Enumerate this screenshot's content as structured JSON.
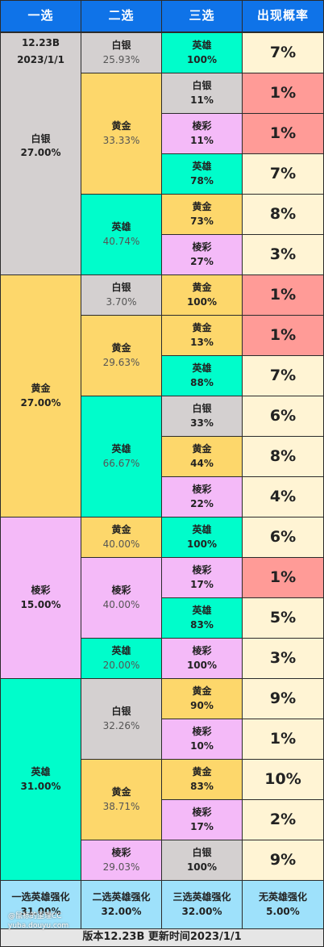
{
  "headers": [
    "一选",
    "二选",
    "三选",
    "出现概率"
  ],
  "version": "12.23B",
  "date": "2023/1/1",
  "groups": [
    {
      "name": "白银",
      "pct": "27.00%",
      "color": "silver",
      "second": [
        {
          "name": "白银",
          "pct": "25.93%",
          "color": "silver",
          "third": [
            {
              "name": "英雄",
              "pct": "100%",
              "color": "hero",
              "prob": "7%",
              "hl": false
            }
          ]
        },
        {
          "name": "黄金",
          "pct": "33.33%",
          "color": "gold",
          "third": [
            {
              "name": "白银",
              "pct": "11%",
              "color": "silver",
              "prob": "1%",
              "hl": true
            },
            {
              "name": "棱彩",
              "pct": "11%",
              "color": "pink",
              "prob": "1%",
              "hl": true
            },
            {
              "name": "英雄",
              "pct": "78%",
              "color": "hero",
              "prob": "7%",
              "hl": false
            }
          ]
        },
        {
          "name": "英雄",
          "pct": "40.74%",
          "color": "hero",
          "third": [
            {
              "name": "黄金",
              "pct": "73%",
              "color": "gold",
              "prob": "8%",
              "hl": false
            },
            {
              "name": "棱彩",
              "pct": "27%",
              "color": "pink",
              "prob": "3%",
              "hl": false
            }
          ]
        }
      ]
    },
    {
      "name": "黄金",
      "pct": "27.00%",
      "color": "gold",
      "second": [
        {
          "name": "白银",
          "pct": "3.70%",
          "color": "silver",
          "third": [
            {
              "name": "黄金",
              "pct": "100%",
              "color": "gold",
              "prob": "1%",
              "hl": true
            }
          ]
        },
        {
          "name": "黄金",
          "pct": "29.63%",
          "color": "gold",
          "third": [
            {
              "name": "黄金",
              "pct": "13%",
              "color": "gold",
              "prob": "1%",
              "hl": true
            },
            {
              "name": "英雄",
              "pct": "88%",
              "color": "hero",
              "prob": "7%",
              "hl": false
            }
          ]
        },
        {
          "name": "英雄",
          "pct": "66.67%",
          "color": "hero",
          "third": [
            {
              "name": "白银",
              "pct": "33%",
              "color": "silver",
              "prob": "6%",
              "hl": false
            },
            {
              "name": "黄金",
              "pct": "44%",
              "color": "gold",
              "prob": "8%",
              "hl": false
            },
            {
              "name": "棱彩",
              "pct": "22%",
              "color": "pink",
              "prob": "4%",
              "hl": false
            }
          ]
        }
      ]
    },
    {
      "name": "棱彩",
      "pct": "15.00%",
      "color": "pink",
      "second": [
        {
          "name": "黄金",
          "pct": "40.00%",
          "color": "gold",
          "third": [
            {
              "name": "英雄",
              "pct": "100%",
              "color": "hero",
              "prob": "6%",
              "hl": false
            }
          ]
        },
        {
          "name": "棱彩",
          "pct": "40.00%",
          "color": "pink",
          "third": [
            {
              "name": "棱彩",
              "pct": "17%",
              "color": "pink",
              "prob": "1%",
              "hl": true
            },
            {
              "name": "英雄",
              "pct": "83%",
              "color": "hero",
              "prob": "5%",
              "hl": false
            }
          ]
        },
        {
          "name": "英雄",
          "pct": "20.00%",
          "color": "hero",
          "third": [
            {
              "name": "棱彩",
              "pct": "100%",
              "color": "pink",
              "prob": "3%",
              "hl": false
            }
          ]
        }
      ]
    },
    {
      "name": "英雄",
      "pct": "31.00%",
      "color": "hero",
      "second": [
        {
          "name": "白银",
          "pct": "32.26%",
          "color": "silver",
          "third": [
            {
              "name": "黄金",
              "pct": "90%",
              "color": "gold",
              "prob": "9%",
              "hl": false
            },
            {
              "name": "棱彩",
              "pct": "10%",
              "color": "pink",
              "prob": "1%",
              "hl": false
            }
          ]
        },
        {
          "name": "黄金",
          "pct": "38.71%",
          "color": "gold",
          "third": [
            {
              "name": "黄金",
              "pct": "83%",
              "color": "gold",
              "prob": "10%",
              "hl": false
            },
            {
              "name": "棱彩",
              "pct": "17%",
              "color": "pink",
              "prob": "2%",
              "hl": false
            }
          ]
        },
        {
          "name": "棱彩",
          "pct": "29.03%",
          "color": "pink",
          "third": [
            {
              "name": "白银",
              "pct": "100%",
              "color": "silver",
              "prob": "9%",
              "hl": false
            }
          ]
        }
      ]
    }
  ],
  "summary": [
    {
      "name": "一选英雄强化",
      "pct": "31.00%"
    },
    {
      "name": "二选英雄强化",
      "pct": "32.00%"
    },
    {
      "name": "三选英雄强化",
      "pct": "32.00%"
    },
    {
      "name": "无英雄强化",
      "pct": "5.00%"
    }
  ],
  "footer": "版本12.23B  更新时间2023/1/1",
  "watermark": {
    "line1": "@鼠标的歪理CC",
    "line2": "yuba.douyu.com"
  },
  "colors": {
    "header": "#0f73e8",
    "silver": "#d4d0d0",
    "gold": "#fdd76b",
    "hero": "#00fdcb",
    "pink": "#f4baf8",
    "prob": "#fff4d4",
    "prob_low": "#ff9b97",
    "summary": "#9ee1fb"
  }
}
